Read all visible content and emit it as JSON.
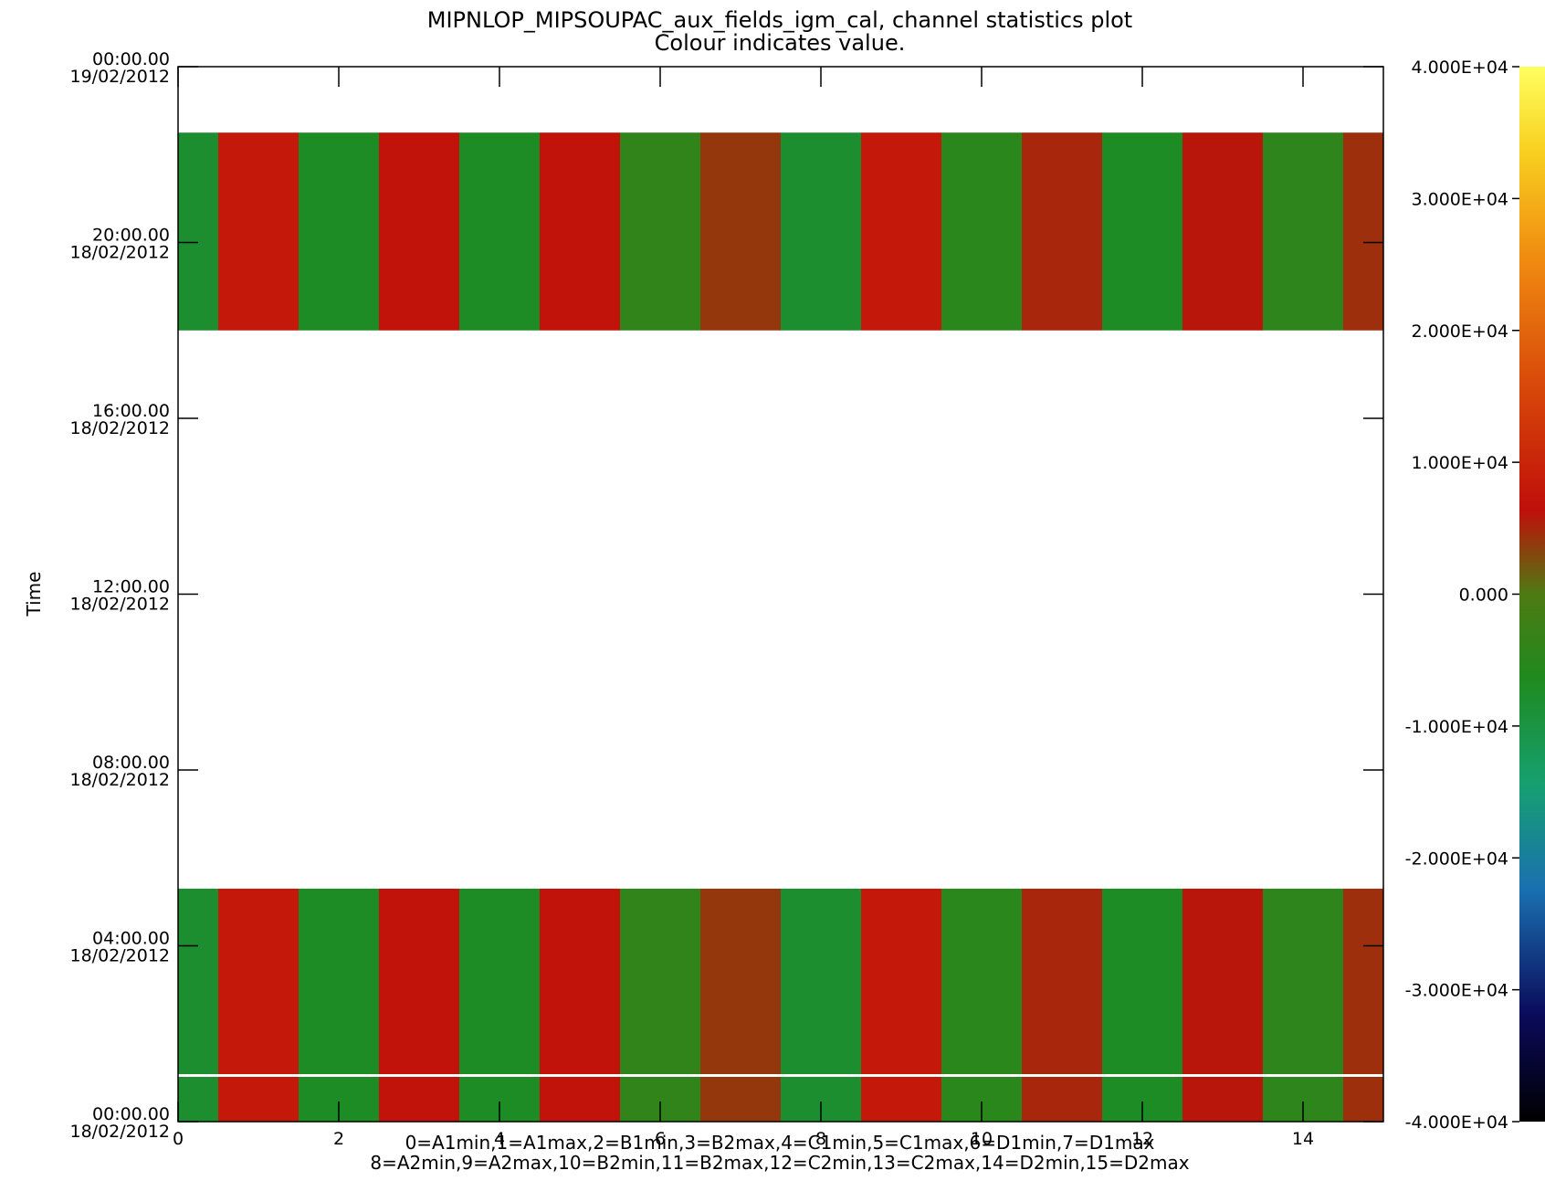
{
  "chart_data": {
    "type": "heatmap",
    "title": "MIPNLOP_MIPSOUPAC_aux_fields_igm_cal, channel statistics plot",
    "subtitle": "Colour indicates value.",
    "ylabel": "Time",
    "xlabel_lines": [
      "0=A1min,1=A1max,2=B1min,3=B2max,4=C1min,5=C1max,6=D1min,7=D1max",
      "8=A2min,9=A2max,10=B2min,11=B2max,12=C2min,13=C2max,14=D2min,15=D2max"
    ],
    "x_ticks": [
      "0",
      "2",
      "4",
      "6",
      "8",
      "10",
      "12",
      "14"
    ],
    "xlim": [
      0,
      15
    ],
    "y_range_hours": [
      0,
      24
    ],
    "y_ticks": [
      {
        "hours": 0,
        "time": "00:00.00",
        "date": "18/02/2012"
      },
      {
        "hours": 4,
        "time": "04:00.00",
        "date": "18/02/2012"
      },
      {
        "hours": 8,
        "time": "08:00.00",
        "date": "18/02/2012"
      },
      {
        "hours": 12,
        "time": "12:00.00",
        "date": "18/02/2012"
      },
      {
        "hours": 16,
        "time": "16:00.00",
        "date": "18/02/2012"
      },
      {
        "hours": 20,
        "time": "20:00.00",
        "date": "18/02/2012"
      },
      {
        "hours": 24,
        "time": "00:00.00",
        "date": "19/02/2012"
      }
    ],
    "colorbar": {
      "range": [
        -40000,
        40000
      ],
      "tick_values": [
        40000,
        30000,
        20000,
        10000,
        0,
        -10000,
        -20000,
        -30000,
        -40000
      ],
      "tick_labels": [
        "4.000E+04",
        "3.000E+04",
        "2.000E+04",
        "1.000E+04",
        "0.000",
        "-1.000E+04",
        "-2.000E+04",
        "-3.000E+04",
        "-4.000E+04"
      ]
    },
    "data_blocks_hours": [
      [
        0,
        5.3
      ],
      [
        18.0,
        22.5
      ]
    ],
    "gap_line_hours": 1.05,
    "channels": [
      {
        "channel": 0,
        "name": "A1min",
        "value": -8000
      },
      {
        "channel": 1,
        "name": "A1max",
        "value": 8000
      },
      {
        "channel": 2,
        "name": "B1min",
        "value": -7000
      },
      {
        "channel": 3,
        "name": "B2max",
        "value": 7000
      },
      {
        "channel": 4,
        "name": "C1min",
        "value": -7000
      },
      {
        "channel": 5,
        "name": "C1max",
        "value": 7000
      },
      {
        "channel": 6,
        "name": "D1min",
        "value": -4000
      },
      {
        "channel": 7,
        "name": "D1max",
        "value": 4000
      },
      {
        "channel": 8,
        "name": "A2min",
        "value": -8000
      },
      {
        "channel": 9,
        "name": "A2max",
        "value": 8000
      },
      {
        "channel": 10,
        "name": "B2min",
        "value": -5000
      },
      {
        "channel": 11,
        "name": "B2max",
        "value": 5000
      },
      {
        "channel": 12,
        "name": "C2min",
        "value": -7000
      },
      {
        "channel": 13,
        "name": "C2max",
        "value": 6000
      },
      {
        "channel": 14,
        "name": "D2min",
        "value": -4500
      },
      {
        "channel": 15,
        "name": "D2max",
        "value": 4500
      }
    ]
  }
}
